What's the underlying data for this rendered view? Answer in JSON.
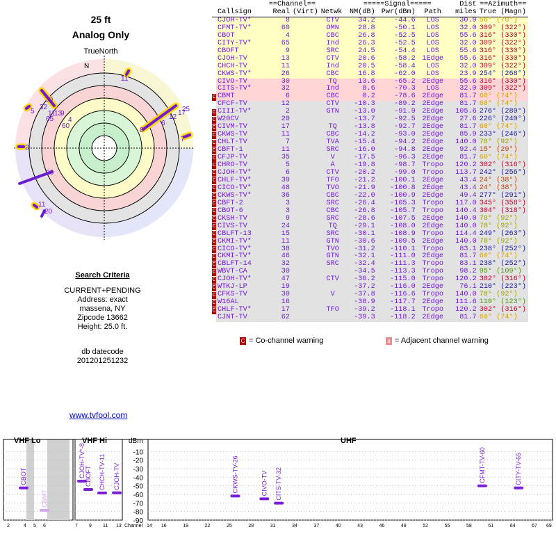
{
  "header": {
    "height_title": "25 ft",
    "mode_title": "Analog Only",
    "true_north": "TrueNorth"
  },
  "criteria": {
    "heading": "Search Criteria",
    "lines": [
      "CURRENT+PENDING",
      "Address: exact",
      "massena, NY",
      "Zipcode 13662",
      "Height: 25.0 ft."
    ],
    "db_label": "db datecode",
    "db_value": "201201251232"
  },
  "link": {
    "label": "www.tvfool.com"
  },
  "polar": {
    "north_label": "N",
    "markers": [
      {
        "label": "11",
        "az": 56
      },
      {
        "label": "30",
        "az": 316
      },
      {
        "label": "5",
        "az": 302
      },
      {
        "label": "32",
        "az": 309
      },
      {
        "label": "11",
        "az": 309
      },
      {
        "label": "65",
        "az": 309
      },
      {
        "label": "9",
        "az": 316
      },
      {
        "label": "13",
        "az": 316
      },
      {
        "label": "4",
        "az": 316
      },
      {
        "label": "60",
        "az": 309
      },
      {
        "label": "8",
        "az": 56
      },
      {
        "label": "6",
        "az": 60
      },
      {
        "label": "12",
        "az": 60
      },
      {
        "label": "17",
        "az": 78
      },
      {
        "label": "25",
        "az": 78
      },
      {
        "label": "7",
        "az": 78
      },
      {
        "label": "2",
        "az": 276
      },
      {
        "label": "26",
        "az": 254
      },
      {
        "label": "11",
        "az": 233
      },
      {
        "label": "20",
        "az": 226
      }
    ]
  },
  "table": {
    "group_headers": {
      "channel": "==Channel==",
      "signal": "=====Signal=====",
      "dist": "Dist",
      "azimuth": "==Azimuth=="
    },
    "columns": {
      "callsign": "Callsign",
      "real": "Real",
      "virt": "(Virt)",
      "netwk": "Netwk",
      "nm": "NM(dB)",
      "pwr": "Pwr(dBm)",
      "path": "Path",
      "miles": "miles",
      "true": "True",
      "magn": "(Magn)"
    },
    "rows": [
      {
        "mk": "",
        "zone": "yellow",
        "cs": "CJOH-TV*",
        "real": "8",
        "virt": "",
        "net": "CTV",
        "nm": "34.2",
        "pwr": "-44.6",
        "path": "LOS",
        "dist": "30.9",
        "az_true": "56°",
        "az_mag": "(70°)",
        "azc": "#d8a000"
      },
      {
        "mk": "",
        "zone": "yellow",
        "cs": "CFMT-TV*",
        "real": "60",
        "virt": "",
        "net": "OMN",
        "nm": "28.8",
        "pwr": "-50.1",
        "path": "LOS",
        "dist": "32.0",
        "az_true": "309°",
        "az_mag": "(322°)",
        "azc": "#c0002a"
      },
      {
        "mk": "",
        "zone": "yellow",
        "cs": "CBOT",
        "real": "4",
        "virt": "",
        "net": "CBC",
        "nm": "26.8",
        "pwr": "-52.5",
        "path": "LOS",
        "dist": "55.6",
        "az_true": "316°",
        "az_mag": "(330°)",
        "azc": "#c0002a"
      },
      {
        "mk": "",
        "zone": "yellow",
        "cs": "CITY-TV*",
        "real": "65",
        "virt": "",
        "net": "Ind",
        "nm": "26.3",
        "pwr": "-52.5",
        "path": "LOS",
        "dist": "32.0",
        "az_true": "309°",
        "az_mag": "(322°)",
        "azc": "#c0002a"
      },
      {
        "mk": "",
        "zone": "yellow",
        "cs": "CBOFT",
        "real": "9",
        "virt": "",
        "net": "SRC",
        "nm": "24.5",
        "pwr": "-54.4",
        "path": "LOS",
        "dist": "55.6",
        "az_true": "316°",
        "az_mag": "(330°)",
        "azc": "#c0002a"
      },
      {
        "mk": "",
        "zone": "yellow",
        "cs": "CJOH-TV",
        "real": "13",
        "virt": "",
        "net": "CTV",
        "nm": "20.6",
        "pwr": "-58.2",
        "path": "1Edge",
        "dist": "55.6",
        "az_true": "316°",
        "az_mag": "(330°)",
        "azc": "#c0002a"
      },
      {
        "mk": "",
        "zone": "yellow",
        "cs": "CHCH-TV",
        "real": "11",
        "virt": "",
        "net": "Ind",
        "nm": "20.5",
        "pwr": "-58.4",
        "path": "LOS",
        "dist": "32.0",
        "az_true": "309°",
        "az_mag": "(322°)",
        "azc": "#c0002a"
      },
      {
        "mk": "",
        "zone": "yellow",
        "cs": "CKWS-TV*",
        "real": "26",
        "virt": "",
        "net": "CBC",
        "nm": "16.8",
        "pwr": "-62.0",
        "path": "LOS",
        "dist": "23.9",
        "az_true": "254°",
        "az_mag": "(268°)",
        "azc": "#1a1aa0"
      },
      {
        "mk": "",
        "zone": "pink",
        "cs": "CIVO-TV",
        "real": "30",
        "virt": "",
        "net": "TQ",
        "nm": "13.6",
        "pwr": "-65.2",
        "path": "2Edge",
        "dist": "55.6",
        "az_true": "316°",
        "az_mag": "(330°)",
        "azc": "#c0002a"
      },
      {
        "mk": "",
        "zone": "pink",
        "cs": "CITS-TV*",
        "real": "32",
        "virt": "",
        "net": "Ind",
        "nm": "8.6",
        "pwr": "-70.3",
        "path": "LOS",
        "dist": "32.0",
        "az_true": "309°",
        "az_mag": "(322°)",
        "azc": "#c0002a"
      },
      {
        "mk": "co",
        "zone": "pink",
        "cs": "CBMT",
        "real": "6",
        "virt": "",
        "net": "CBC",
        "nm": "0.2",
        "pwr": "-78.6",
        "path": "2Edge",
        "dist": "81.7",
        "az_true": "60°",
        "az_mag": "(74°)",
        "azc": "#d8a000"
      },
      {
        "mk": "",
        "zone": "grey",
        "cs": "CFCF-TV",
        "real": "12",
        "virt": "",
        "net": "CTV",
        "nm": "-10.3",
        "pwr": "-89.2",
        "path": "2Edge",
        "dist": "81.7",
        "az_true": "60°",
        "az_mag": "(74°)",
        "azc": "#d8a000"
      },
      {
        "mk": "co",
        "zone": "grey",
        "cs": "CIII-TV*",
        "real": "2",
        "virt": "",
        "net": "GTN",
        "nm": "-13.0",
        "pwr": "-91.9",
        "path": "2Edge",
        "dist": "105.6",
        "az_true": "276°",
        "az_mag": "(289°)",
        "azc": "#1a1aa0"
      },
      {
        "mk": "co",
        "zone": "grey",
        "cs": "W20CV",
        "real": "20",
        "virt": "",
        "net": "",
        "nm": "-13.7",
        "pwr": "-92.5",
        "path": "2Edge",
        "dist": "27.6",
        "az_true": "226°",
        "az_mag": "(240°)",
        "azc": "#1a1aa0"
      },
      {
        "mk": "co",
        "zone": "grey",
        "cs": "CIVM-TV",
        "real": "17",
        "virt": "",
        "net": "TQ",
        "nm": "-13.8",
        "pwr": "-92.7",
        "path": "2Edge",
        "dist": "81.7",
        "az_true": "60°",
        "az_mag": "(74°)",
        "azc": "#d8a000"
      },
      {
        "mk": "co",
        "zone": "grey",
        "cs": "CKWS-TV",
        "real": "11",
        "virt": "",
        "net": "CBC",
        "nm": "-14.2",
        "pwr": "-93.0",
        "path": "2Edge",
        "dist": "85.9",
        "az_true": "233°",
        "az_mag": "(246°)",
        "azc": "#1a1aa0"
      },
      {
        "mk": "co",
        "zone": "grey",
        "cs": "CHLT-TV",
        "real": "7",
        "virt": "",
        "net": "TVA",
        "nm": "-15.4",
        "pwr": "-94.2",
        "path": "2Edge",
        "dist": "140.0",
        "az_true": "78°",
        "az_mag": "(92°)",
        "azc": "#a0a000"
      },
      {
        "mk": "co",
        "zone": "grey",
        "cs": "CBFT-1",
        "real": "11",
        "virt": "",
        "net": "SRC",
        "nm": "-16.0",
        "pwr": "-94.8",
        "path": "2Edge",
        "dist": "92.4",
        "az_true": "15°",
        "az_mag": "(29°)",
        "azc": "#c04000"
      },
      {
        "mk": "co",
        "zone": "grey",
        "cs": "CFJP-TV",
        "real": "35",
        "virt": "",
        "net": "V",
        "nm": "-17.5",
        "pwr": "-96.3",
        "path": "2Edge",
        "dist": "81.7",
        "az_true": "60°",
        "az_mag": "(74°)",
        "azc": "#d8a000"
      },
      {
        "mk": "co",
        "zone": "grey",
        "cs": "CHRO-TV",
        "real": "5",
        "virt": "",
        "net": "A",
        "nm": "-19.8",
        "pwr": "-98.7",
        "path": "Tropo",
        "dist": "120.2",
        "az_true": "302°",
        "az_mag": "(316°)",
        "azc": "#c0002a"
      },
      {
        "mk": "co",
        "zone": "grey",
        "cs": "CJOH-TV*",
        "real": "6",
        "virt": "",
        "net": "CTV",
        "nm": "-20.2",
        "pwr": "-99.0",
        "path": "Tropo",
        "dist": "113.7",
        "az_true": "242°",
        "az_mag": "(256°)",
        "azc": "#1a1aa0"
      },
      {
        "mk": "co",
        "zone": "grey",
        "cs": "CHLF-TV*",
        "real": "39",
        "virt": "",
        "net": "TFO",
        "nm": "-21.2",
        "pwr": "-100.1",
        "path": "2Edge",
        "dist": "43.4",
        "az_true": "24°",
        "az_mag": "(38°)",
        "azc": "#c04000"
      },
      {
        "mk": "co",
        "zone": "grey",
        "cs": "CICO-TV*",
        "real": "48",
        "virt": "",
        "net": "TVO",
        "nm": "-21.9",
        "pwr": "-100.8",
        "path": "2Edge",
        "dist": "43.4",
        "az_true": "24°",
        "az_mag": "(38°)",
        "azc": "#c04000"
      },
      {
        "mk": "co",
        "zone": "grey",
        "cs": "CKWS-TV*",
        "real": "36",
        "virt": "",
        "net": "CBC",
        "nm": "-22.0",
        "pwr": "-100.9",
        "path": "2Edge",
        "dist": "49.4",
        "az_true": "277°",
        "az_mag": "(291°)",
        "azc": "#1a1aa0"
      },
      {
        "mk": "co",
        "zone": "grey",
        "cs": "CBFT-2",
        "real": "3",
        "virt": "",
        "net": "SRC",
        "nm": "-26.4",
        "pwr": "-105.3",
        "path": "Tropo",
        "dist": "117.0",
        "az_true": "345°",
        "az_mag": "(358°)",
        "azc": "#c0002a"
      },
      {
        "mk": "co",
        "zone": "grey",
        "cs": "CBOT-6",
        "real": "3",
        "virt": "",
        "net": "CBC",
        "nm": "-26.8",
        "pwr": "-105.7",
        "path": "Tropo",
        "dist": "140.4",
        "az_true": "304°",
        "az_mag": "(318°)",
        "azc": "#c0002a"
      },
      {
        "mk": "co",
        "zone": "grey",
        "cs": "CKSH-TV",
        "real": "9",
        "virt": "",
        "net": "SRC",
        "nm": "-28.6",
        "pwr": "-107.5",
        "path": "2Edge",
        "dist": "140.0",
        "az_true": "78°",
        "az_mag": "(92°)",
        "azc": "#a0a000"
      },
      {
        "mk": "co",
        "zone": "grey",
        "cs": "CIVS-TV",
        "real": "24",
        "virt": "",
        "net": "TQ",
        "nm": "-29.1",
        "pwr": "-108.0",
        "path": "2Edge",
        "dist": "140.0",
        "az_true": "78°",
        "az_mag": "(92°)",
        "azc": "#a0a000"
      },
      {
        "mk": "co",
        "zone": "grey",
        "cs": "CBLFT-13",
        "real": "15",
        "virt": "",
        "net": "SRC",
        "nm": "-30.1",
        "pwr": "-108.9",
        "path": "Tropo",
        "dist": "114.4",
        "az_true": "249°",
        "az_mag": "(263°)",
        "azc": "#1a1aa0"
      },
      {
        "mk": "co",
        "zone": "grey",
        "cs": "CKMI-TV*",
        "real": "11",
        "virt": "",
        "net": "GTN",
        "nm": "-30.6",
        "pwr": "-109.5",
        "path": "2Edge",
        "dist": "140.0",
        "az_true": "78°",
        "az_mag": "(92°)",
        "azc": "#a0a000"
      },
      {
        "mk": "co",
        "zone": "grey",
        "cs": "CICO-TV*",
        "real": "38",
        "virt": "",
        "net": "TVO",
        "nm": "-31.2",
        "pwr": "-110.1",
        "path": "Tropo",
        "dist": "83.1",
        "az_true": "238°",
        "az_mag": "(252°)",
        "azc": "#1a1aa0"
      },
      {
        "mk": "co",
        "zone": "grey",
        "cs": "CKMI-TV*",
        "real": "46",
        "virt": "",
        "net": "GTN",
        "nm": "-32.1",
        "pwr": "-111.0",
        "path": "2Edge",
        "dist": "81.7",
        "az_true": "60°",
        "az_mag": "(74°)",
        "azc": "#d8a000"
      },
      {
        "mk": "co",
        "zone": "grey",
        "cs": "CBLFT-14",
        "real": "32",
        "virt": "",
        "net": "SRC",
        "nm": "-32.4",
        "pwr": "-111.3",
        "path": "Tropo",
        "dist": "83.1",
        "az_true": "238°",
        "az_mag": "(252°)",
        "azc": "#1a1aa0"
      },
      {
        "mk": "co",
        "zone": "grey",
        "cs": "WBVT-CA",
        "real": "30",
        "virt": "",
        "net": "",
        "nm": "-34.5",
        "pwr": "-113.3",
        "path": "Tropo",
        "dist": "98.2",
        "az_true": "95°",
        "az_mag": "(109°)",
        "azc": "#4a9a00"
      },
      {
        "mk": "co",
        "zone": "grey",
        "cs": "CJOH-TV*",
        "real": "47",
        "virt": "",
        "net": "CTV",
        "nm": "-36.2",
        "pwr": "-115.0",
        "path": "Tropo",
        "dist": "120.2",
        "az_true": "302°",
        "az_mag": "(316°)",
        "azc": "#c0002a"
      },
      {
        "mk": "co",
        "zone": "grey",
        "cs": "WTKJ-LP",
        "real": "19",
        "virt": "",
        "net": "",
        "nm": "-37.2",
        "pwr": "-116.0",
        "path": "2Edge",
        "dist": "76.1",
        "az_true": "210°",
        "az_mag": "(223°)",
        "azc": "#1a1aa0"
      },
      {
        "mk": "co",
        "zone": "grey",
        "cs": "CFKS-TV",
        "real": "30",
        "virt": "",
        "net": "V",
        "nm": "-37.8",
        "pwr": "-116.6",
        "path": "Tropo",
        "dist": "140.0",
        "az_true": "78°",
        "az_mag": "(92°)",
        "azc": "#a0a000"
      },
      {
        "mk": "co",
        "zone": "grey",
        "cs": "W16AL",
        "real": "16",
        "virt": "",
        "net": "",
        "nm": "-38.9",
        "pwr": "-117.7",
        "path": "2Edge",
        "dist": "111.6",
        "az_true": "110°",
        "az_mag": "(123°)",
        "azc": "#4a9a00"
      },
      {
        "mk": "co",
        "zone": "grey",
        "cs": "CHLF-TV*",
        "real": "17",
        "virt": "",
        "net": "TFO",
        "nm": "-39.2",
        "pwr": "-118.1",
        "path": "Tropo",
        "dist": "120.2",
        "az_true": "302°",
        "az_mag": "(316°)",
        "azc": "#c0002a"
      },
      {
        "mk": "",
        "zone": "grey",
        "cs": "CJNT-TV",
        "real": "62",
        "virt": "",
        "net": "",
        "nm": "-39.3",
        "pwr": "-118.2",
        "path": "2Edge",
        "dist": "81.7",
        "az_true": "60°",
        "az_mag": "(74°)",
        "azc": "#d8a000"
      }
    ]
  },
  "legend": {
    "co_marker": "C",
    "co_label": "= Co-channel warning",
    "adj_marker": "a",
    "adj_label": "= Adjacent channel warning"
  },
  "spectrum": {
    "vhf_lo": "VHF Lo",
    "vhf_hi": "VHF Hi",
    "uhf": "UHF",
    "unit": "dBm",
    "dbm_ticks": [
      "-10",
      "-20",
      "-30",
      "-40",
      "-50",
      "-60",
      "-70",
      "-80",
      "-90"
    ],
    "channel_label": "Channel",
    "ch_lo": [
      "2",
      "4",
      "5",
      "6"
    ],
    "ch_hi": [
      "7",
      "9",
      "11",
      "13"
    ],
    "ch_uhf": [
      "14",
      "16",
      "19",
      "22",
      "25",
      "28",
      "31",
      "34",
      "37",
      "40",
      "43",
      "46",
      "49",
      "52",
      "55",
      "58",
      "61",
      "64",
      "67",
      "69"
    ],
    "signals": [
      {
        "label": "CBOT",
        "ch": 4,
        "dbm": -52.5,
        "color": "#7a1fd8"
      },
      {
        "label": "CBMT",
        "ch": 6,
        "dbm": -78.6,
        "color": "#d8a6f0"
      },
      {
        "label": "CJOH-TV*-8",
        "ch": 8,
        "dbm": -44.6,
        "color": "#7a1fd8"
      },
      {
        "label": "CBOFT",
        "ch": 9,
        "dbm": -54.4,
        "color": "#7a1fd8"
      },
      {
        "label": "CHCH-TV-11",
        "ch": 11,
        "dbm": -58.4,
        "color": "#7a1fd8"
      },
      {
        "label": "CJOH-TV",
        "ch": 13,
        "dbm": -58.2,
        "color": "#7a1fd8"
      },
      {
        "label": "CKWS-TV-26",
        "ch": 26,
        "dbm": -62.0,
        "color": "#7a1fd8"
      },
      {
        "label": "CIVO-TV",
        "ch": 30,
        "dbm": -65.2,
        "color": "#7a1fd8"
      },
      {
        "label": "CITS-TV-32",
        "ch": 32,
        "dbm": -70.3,
        "color": "#7a1fd8"
      },
      {
        "label": "CFMT-TV-60",
        "ch": 60,
        "dbm": -50.1,
        "color": "#7a1fd8"
      },
      {
        "label": "CITY-TV-65",
        "ch": 65,
        "dbm": -52.5,
        "color": "#7a1fd8"
      }
    ]
  }
}
